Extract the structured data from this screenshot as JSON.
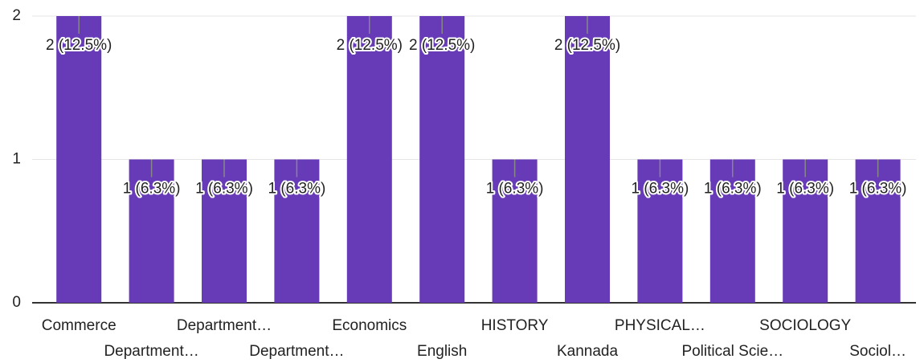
{
  "chart_data": {
    "type": "bar",
    "categories": [
      "Commerce",
      "Department…",
      "Department…",
      "Department…",
      "Economics",
      "English",
      "HISTORY",
      "Kannada",
      "PHYSICAL…",
      "Political Scie…",
      "SOCIOLOGY",
      "Sociol…"
    ],
    "values": [
      2,
      1,
      1,
      1,
      2,
      2,
      1,
      2,
      1,
      1,
      1,
      1
    ],
    "value_labels": [
      "2 (12.5%)",
      "1 (6.3%)",
      "1 (6.3%)",
      "1 (6.3%)",
      "2 (12.5%)",
      "2 (12.5%)",
      "1 (6.3%)",
      "2 (12.5%)",
      "1 (6.3%)",
      "1 (6.3%)",
      "1 (6.3%)",
      "1 (6.3%)"
    ],
    "color": "#673ab7",
    "ylim": [
      0,
      2
    ],
    "yticks": [
      0,
      1,
      2
    ],
    "grid": true
  }
}
